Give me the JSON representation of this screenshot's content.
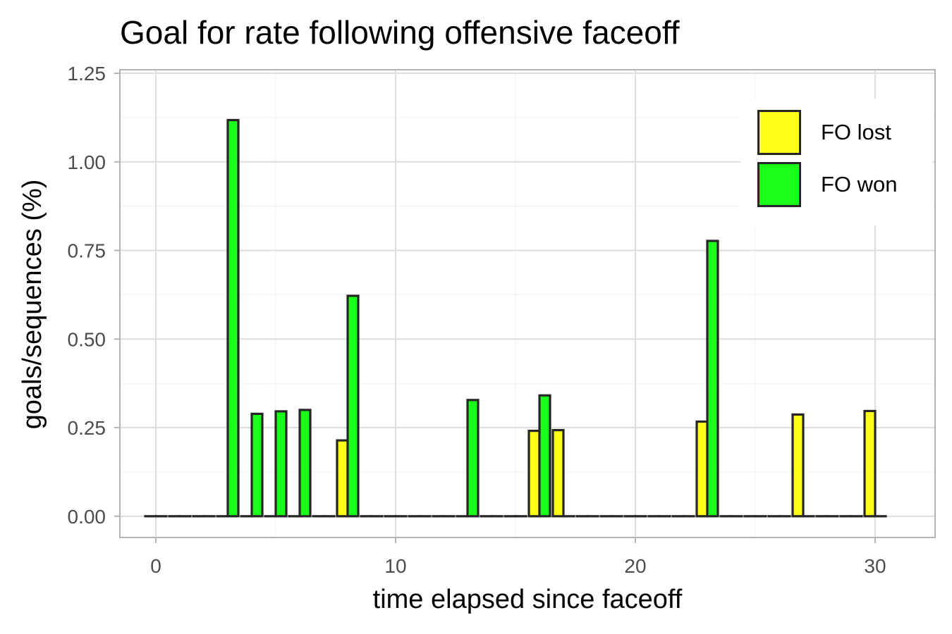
{
  "chart_data": {
    "type": "bar",
    "title": "Goal for rate following offensive faceoff",
    "xlabel": "time elapsed since faceoff",
    "ylabel": "goals/sequences (%)",
    "xlim": [
      -1.5,
      32.5
    ],
    "ylim": [
      -0.06,
      1.26
    ],
    "x_ticks": [
      0,
      10,
      20,
      30
    ],
    "y_ticks": [
      0,
      0.25,
      0.5,
      0.75,
      1,
      1.25
    ],
    "y_tick_labels": [
      "0.00",
      "0.25",
      "0.50",
      "0.75",
      "1.00",
      "1.25"
    ],
    "grid": true,
    "legend_position": "top-right",
    "x": [
      0,
      1,
      2,
      3,
      4,
      5,
      6,
      7,
      8,
      9,
      10,
      11,
      12,
      13,
      14,
      15,
      16,
      17,
      18,
      19,
      20,
      21,
      22,
      23,
      24,
      25,
      26,
      27,
      28,
      29,
      30
    ],
    "series": [
      {
        "name": "FO lost",
        "color": "#FFFF19",
        "values": [
          0,
          0,
          0,
          0,
          0,
          0,
          0,
          0,
          0.214,
          0,
          0,
          0,
          0,
          0,
          0,
          0,
          0.241,
          0.243,
          0,
          0,
          0,
          0,
          0,
          0.267,
          0,
          0,
          0,
          0.287,
          0,
          0,
          0.297
        ]
      },
      {
        "name": "FO won",
        "color": "#19FF19",
        "values": [
          0,
          0,
          0,
          1.118,
          0.289,
          0.296,
          0.3,
          0,
          0.622,
          0,
          0,
          0,
          0,
          0.328,
          0,
          0,
          0.341,
          0,
          0,
          0,
          0,
          0,
          0,
          0.777,
          0,
          0,
          0,
          0,
          0,
          0,
          0
        ]
      }
    ]
  }
}
